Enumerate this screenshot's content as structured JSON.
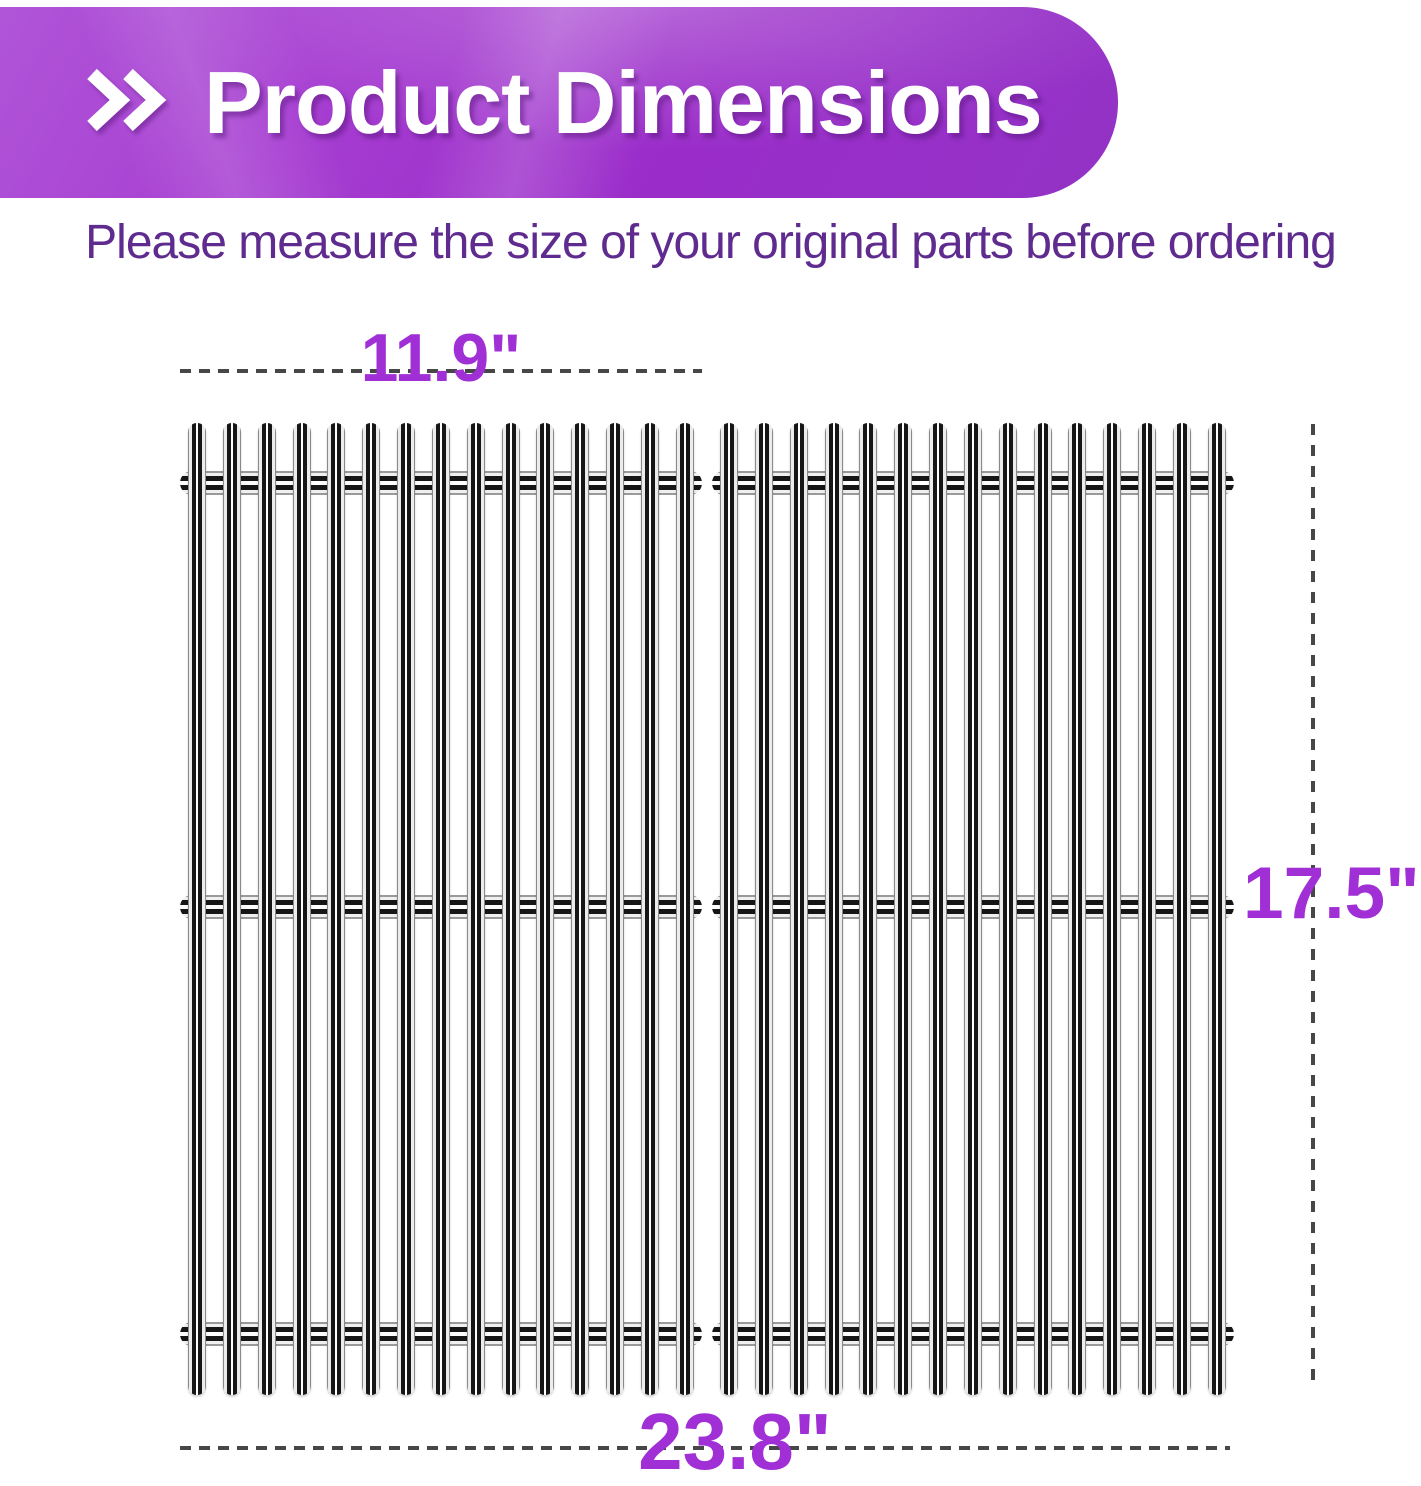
{
  "header": {
    "title": "Product Dimensions"
  },
  "subtitle": "Please measure the size of your original parts before ordering",
  "diagram": {
    "panel_width_label": "11.9\"",
    "height_label": "17.5\"",
    "total_width_label": "23.8\"",
    "panel_count": 2,
    "rods_per_panel": 15,
    "crossbars_per_panel": 3
  },
  "icons": {
    "header_icon": "double-chevron-icon"
  },
  "colors": {
    "banner_gradient_start": "#b055d8",
    "banner_gradient_end": "#9333c6",
    "title_text": "#ffffff",
    "subtitle_text": "#5f2b8f",
    "dimension_label": "#a02fd6",
    "dimension_line": "#474747"
  }
}
